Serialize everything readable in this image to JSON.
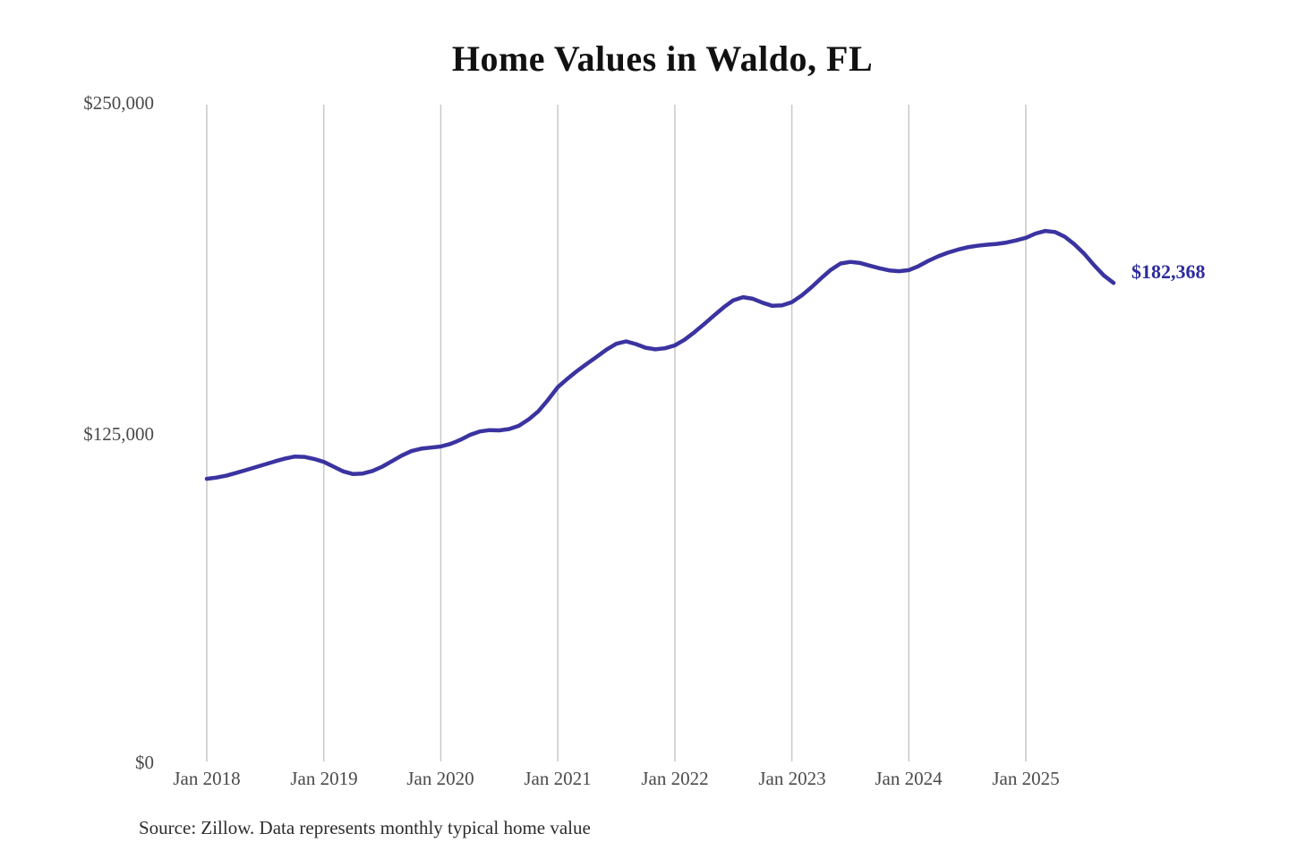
{
  "chart": {
    "title": "Home Values in Waldo, FL",
    "end_label": "$182,368",
    "source_note": "Source: Zillow. Data represents monthly typical home value",
    "y_ticks": [
      {
        "label": "$250,000",
        "value": 250000
      },
      {
        "label": "$125,000",
        "value": 125000
      },
      {
        "label": "$0",
        "value": 0
      }
    ],
    "x_ticks": [
      "Jan 2018",
      "Jan 2019",
      "Jan 2020",
      "Jan 2021",
      "Jan 2022",
      "Jan 2023",
      "Jan 2024",
      "Jan 2025"
    ]
  },
  "colors": {
    "line": "#3a33a0",
    "end_label": "#2d2b9d",
    "gridline": "#c9c9c9",
    "title_text": "#111111",
    "axis_text": "#4a4a4a",
    "source_text": "#2d2d2d",
    "background": "#ffffff"
  },
  "chart_data": {
    "type": "line",
    "title": "Home Values in Waldo, FL",
    "series_name": "Monthly typical home value (USD)",
    "frequency": "monthly",
    "start_month": "2018-01",
    "end_month": "2025-10",
    "latest_value": 182368,
    "ylim": [
      0,
      250000
    ],
    "y_tick_values": [
      0,
      125000,
      250000
    ],
    "x_tick_labels": [
      "Jan 2018",
      "Jan 2019",
      "Jan 2020",
      "Jan 2021",
      "Jan 2022",
      "Jan 2023",
      "Jan 2024",
      "Jan 2025"
    ],
    "grid": "vertical-only",
    "legend": "none",
    "annotation": {
      "text": "$182,368",
      "attached_to": "last-point"
    },
    "months": [
      "2018-01",
      "2018-02",
      "2018-03",
      "2018-04",
      "2018-05",
      "2018-06",
      "2018-07",
      "2018-08",
      "2018-09",
      "2018-10",
      "2018-11",
      "2018-12",
      "2019-01",
      "2019-02",
      "2019-03",
      "2019-04",
      "2019-05",
      "2019-06",
      "2019-07",
      "2019-08",
      "2019-09",
      "2019-10",
      "2019-11",
      "2019-12",
      "2020-01",
      "2020-02",
      "2020-03",
      "2020-04",
      "2020-05",
      "2020-06",
      "2020-07",
      "2020-08",
      "2020-09",
      "2020-10",
      "2020-11",
      "2020-12",
      "2021-01",
      "2021-02",
      "2021-03",
      "2021-04",
      "2021-05",
      "2021-06",
      "2021-07",
      "2021-08",
      "2021-09",
      "2021-10",
      "2021-11",
      "2021-12",
      "2022-01",
      "2022-02",
      "2022-03",
      "2022-04",
      "2022-05",
      "2022-06",
      "2022-07",
      "2022-08",
      "2022-09",
      "2022-10",
      "2022-11",
      "2022-12",
      "2023-01",
      "2023-02",
      "2023-03",
      "2023-04",
      "2023-05",
      "2023-06",
      "2023-07",
      "2023-08",
      "2023-09",
      "2023-10",
      "2023-11",
      "2023-12",
      "2024-01",
      "2024-02",
      "2024-03",
      "2024-04",
      "2024-05",
      "2024-06",
      "2024-07",
      "2024-08",
      "2024-09",
      "2024-10",
      "2024-11",
      "2024-12",
      "2025-01",
      "2025-02",
      "2025-03",
      "2025-04",
      "2025-05",
      "2025-06",
      "2025-07",
      "2025-08",
      "2025-09",
      "2025-10"
    ],
    "values": [
      108400,
      108900,
      109600,
      110600,
      111700,
      112800,
      113900,
      115000,
      116000,
      116800,
      116700,
      115900,
      114800,
      113000,
      111200,
      110200,
      110400,
      111400,
      113000,
      115100,
      117200,
      118900,
      119800,
      120200,
      120600,
      121600,
      123100,
      125000,
      126300,
      126800,
      126700,
      127200,
      128400,
      130800,
      133900,
      138200,
      143000,
      146200,
      149200,
      151900,
      154500,
      157200,
      159400,
      160300,
      159300,
      157900,
      157300,
      157700,
      158800,
      160900,
      163700,
      166800,
      170000,
      173100,
      175800,
      177000,
      176400,
      174900,
      173700,
      173900,
      175100,
      177600,
      180700,
      184100,
      187300,
      189700,
      190300,
      189900,
      188900,
      187900,
      187100,
      186800,
      187200,
      188700,
      190700,
      192400,
      193800,
      194900,
      195800,
      196400,
      196800,
      197100,
      197600,
      198400,
      199400,
      201000,
      202000,
      201600,
      199800,
      196900,
      193300,
      189100,
      185200,
      182368
    ]
  }
}
